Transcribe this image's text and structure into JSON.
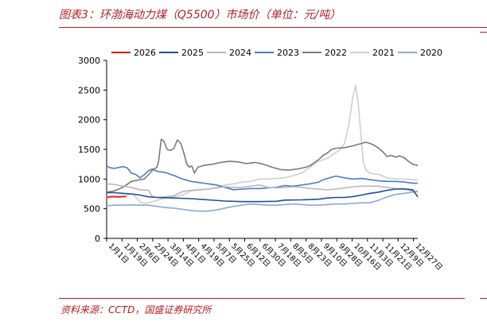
{
  "figure": {
    "title": "图表3：环渤海动力煤（Q5500）市场价（单位：元/吨）",
    "source": "资料来源：CCTD，国盛证券研究所"
  },
  "chart_data": {
    "type": "line",
    "x": [
      "1月1日",
      "1月19日",
      "2月6日",
      "2月24日",
      "3月14日",
      "4月1日",
      "4月19日",
      "5月7日",
      "5月25日",
      "6月12日",
      "6月30日",
      "7月18日",
      "8月5日",
      "8月23日",
      "9月10日",
      "9月28日",
      "10月16日",
      "11月3日",
      "11月21日",
      "12月9日",
      "12月27日"
    ],
    "ylim": [
      0,
      3000
    ],
    "yticks": [
      0,
      500,
      1000,
      1500,
      2000,
      2500,
      3000
    ],
    "legend_position": "top",
    "series": [
      {
        "name": "2026",
        "color": "#e11a1a",
        "points": [
          [
            1,
            690
          ],
          [
            5,
            700
          ],
          [
            10,
            700
          ],
          [
            17,
            698
          ],
          [
            20,
            703
          ],
          [
            24,
            702
          ]
        ]
      },
      {
        "name": "2025",
        "color": "#1f4e9c",
        "points": [
          [
            1,
            770
          ],
          [
            10,
            770
          ],
          [
            20,
            760
          ],
          [
            30,
            750
          ],
          [
            40,
            730
          ],
          [
            50,
            700
          ],
          [
            60,
            690
          ],
          [
            80,
            680
          ],
          [
            100,
            670
          ],
          [
            120,
            650
          ],
          [
            140,
            630
          ],
          [
            160,
            620
          ],
          [
            180,
            620
          ],
          [
            200,
            625
          ],
          [
            210,
            645
          ],
          [
            230,
            650
          ],
          [
            250,
            660
          ],
          [
            260,
            680
          ],
          [
            270,
            690
          ],
          [
            280,
            690
          ],
          [
            290,
            705
          ],
          [
            300,
            730
          ],
          [
            310,
            760
          ],
          [
            320,
            780
          ],
          [
            330,
            810
          ],
          [
            340,
            830
          ],
          [
            350,
            835
          ],
          [
            360,
            820
          ],
          [
            366,
            700
          ]
        ]
      },
      {
        "name": "2024",
        "color": "#b8b8b8",
        "points": [
          [
            1,
            920
          ],
          [
            10,
            910
          ],
          [
            20,
            880
          ],
          [
            30,
            860
          ],
          [
            40,
            820
          ],
          [
            50,
            810
          ],
          [
            55,
            700
          ],
          [
            60,
            690
          ],
          [
            70,
            700
          ],
          [
            80,
            720
          ],
          [
            90,
            790
          ],
          [
            95,
            800
          ],
          [
            100,
            810
          ],
          [
            110,
            820
          ],
          [
            120,
            830
          ],
          [
            130,
            850
          ],
          [
            140,
            870
          ],
          [
            150,
            860
          ],
          [
            160,
            860
          ],
          [
            170,
            880
          ],
          [
            180,
            900
          ],
          [
            190,
            860
          ],
          [
            200,
            850
          ],
          [
            210,
            860
          ],
          [
            220,
            870
          ],
          [
            230,
            860
          ],
          [
            240,
            840
          ],
          [
            250,
            830
          ],
          [
            260,
            820
          ],
          [
            270,
            830
          ],
          [
            280,
            850
          ],
          [
            290,
            870
          ],
          [
            300,
            880
          ],
          [
            310,
            880
          ],
          [
            320,
            880
          ],
          [
            330,
            860
          ],
          [
            340,
            840
          ],
          [
            350,
            830
          ],
          [
            360,
            800
          ],
          [
            366,
            800
          ]
        ]
      },
      {
        "name": "2023",
        "color": "#4a7cc8",
        "points": [
          [
            1,
            1220
          ],
          [
            5,
            1190
          ],
          [
            10,
            1180
          ],
          [
            20,
            1210
          ],
          [
            25,
            1190
          ],
          [
            30,
            1100
          ],
          [
            35,
            1080
          ],
          [
            40,
            1020
          ],
          [
            45,
            1070
          ],
          [
            50,
            1140
          ],
          [
            55,
            1170
          ],
          [
            60,
            1130
          ],
          [
            70,
            1110
          ],
          [
            80,
            1060
          ],
          [
            90,
            1000
          ],
          [
            100,
            960
          ],
          [
            110,
            940
          ],
          [
            120,
            920
          ],
          [
            130,
            900
          ],
          [
            140,
            860
          ],
          [
            150,
            820
          ],
          [
            160,
            830
          ],
          [
            170,
            840
          ],
          [
            180,
            840
          ],
          [
            190,
            850
          ],
          [
            200,
            860
          ],
          [
            210,
            890
          ],
          [
            220,
            880
          ],
          [
            230,
            900
          ],
          [
            240,
            920
          ],
          [
            250,
            950
          ],
          [
            255,
            990
          ],
          [
            260,
            1010
          ],
          [
            270,
            1050
          ],
          [
            280,
            1020
          ],
          [
            290,
            1000
          ],
          [
            300,
            1010
          ],
          [
            310,
            990
          ],
          [
            320,
            970
          ],
          [
            330,
            960
          ],
          [
            340,
            960
          ],
          [
            350,
            950
          ],
          [
            360,
            930
          ],
          [
            366,
            930
          ]
        ]
      },
      {
        "name": "2022",
        "color": "#7a7a7a",
        "points": [
          [
            1,
            780
          ],
          [
            10,
            800
          ],
          [
            20,
            860
          ],
          [
            30,
            960
          ],
          [
            40,
            990
          ],
          [
            45,
            1000
          ],
          [
            50,
            1070
          ],
          [
            55,
            1150
          ],
          [
            60,
            1200
          ],
          [
            62,
            1300
          ],
          [
            65,
            1670
          ],
          [
            68,
            1640
          ],
          [
            72,
            1500
          ],
          [
            76,
            1480
          ],
          [
            80,
            1520
          ],
          [
            84,
            1660
          ],
          [
            88,
            1600
          ],
          [
            92,
            1420
          ],
          [
            95,
            1250
          ],
          [
            98,
            1200
          ],
          [
            101,
            1220
          ],
          [
            104,
            1100
          ],
          [
            108,
            1200
          ],
          [
            115,
            1230
          ],
          [
            125,
            1250
          ],
          [
            135,
            1280
          ],
          [
            145,
            1300
          ],
          [
            155,
            1290
          ],
          [
            165,
            1260
          ],
          [
            175,
            1280
          ],
          [
            185,
            1250
          ],
          [
            195,
            1200
          ],
          [
            205,
            1160
          ],
          [
            215,
            1150
          ],
          [
            225,
            1170
          ],
          [
            235,
            1200
          ],
          [
            240,
            1230
          ],
          [
            245,
            1280
          ],
          [
            250,
            1330
          ],
          [
            255,
            1400
          ],
          [
            260,
            1440
          ],
          [
            265,
            1500
          ],
          [
            270,
            1520
          ],
          [
            280,
            1530
          ],
          [
            290,
            1560
          ],
          [
            300,
            1600
          ],
          [
            305,
            1620
          ],
          [
            310,
            1600
          ],
          [
            315,
            1570
          ],
          [
            320,
            1520
          ],
          [
            325,
            1460
          ],
          [
            330,
            1380
          ],
          [
            335,
            1400
          ],
          [
            340,
            1370
          ],
          [
            345,
            1390
          ],
          [
            350,
            1360
          ],
          [
            355,
            1300
          ],
          [
            360,
            1250
          ],
          [
            366,
            1230
          ]
        ]
      },
      {
        "name": "2021",
        "color": "#cfcfcf",
        "points": [
          [
            1,
            710
          ],
          [
            10,
            720
          ],
          [
            20,
            720
          ],
          [
            25,
            730
          ],
          [
            30,
            750
          ],
          [
            35,
            700
          ],
          [
            40,
            620
          ],
          [
            45,
            590
          ],
          [
            50,
            600
          ],
          [
            60,
            640
          ],
          [
            70,
            680
          ],
          [
            80,
            700
          ],
          [
            90,
            730
          ],
          [
            100,
            800
          ],
          [
            110,
            820
          ],
          [
            120,
            830
          ],
          [
            130,
            860
          ],
          [
            140,
            900
          ],
          [
            150,
            920
          ],
          [
            160,
            950
          ],
          [
            170,
            960
          ],
          [
            180,
            1000
          ],
          [
            190,
            1000
          ],
          [
            200,
            1010
          ],
          [
            210,
            1020
          ],
          [
            220,
            1060
          ],
          [
            230,
            1100
          ],
          [
            240,
            1200
          ],
          [
            250,
            1300
          ],
          [
            260,
            1350
          ],
          [
            270,
            1450
          ],
          [
            275,
            1500
          ],
          [
            280,
            1600
          ],
          [
            285,
            1900
          ],
          [
            290,
            2400
          ],
          [
            293,
            2580
          ],
          [
            296,
            2300
          ],
          [
            299,
            1800
          ],
          [
            302,
            1300
          ],
          [
            305,
            1150
          ],
          [
            310,
            1100
          ],
          [
            320,
            1080
          ],
          [
            330,
            1020
          ],
          [
            340,
            1000
          ],
          [
            350,
            1000
          ],
          [
            360,
            990
          ],
          [
            366,
            990
          ]
        ]
      },
      {
        "name": "2020",
        "color": "#8ea8d0",
        "points": [
          [
            1,
            550
          ],
          [
            10,
            560
          ],
          [
            20,
            560
          ],
          [
            30,
            565
          ],
          [
            40,
            560
          ],
          [
            50,
            560
          ],
          [
            60,
            540
          ],
          [
            70,
            520
          ],
          [
            80,
            510
          ],
          [
            90,
            490
          ],
          [
            100,
            470
          ],
          [
            110,
            460
          ],
          [
            120,
            460
          ],
          [
            130,
            480
          ],
          [
            140,
            510
          ],
          [
            150,
            540
          ],
          [
            160,
            560
          ],
          [
            170,
            580
          ],
          [
            180,
            570
          ],
          [
            190,
            560
          ],
          [
            200,
            560
          ],
          [
            210,
            570
          ],
          [
            220,
            580
          ],
          [
            230,
            570
          ],
          [
            240,
            560
          ],
          [
            250,
            560
          ],
          [
            260,
            570
          ],
          [
            270,
            580
          ],
          [
            280,
            580
          ],
          [
            290,
            590
          ],
          [
            300,
            600
          ],
          [
            310,
            600
          ],
          [
            320,
            640
          ],
          [
            330,
            700
          ],
          [
            340,
            740
          ],
          [
            350,
            760
          ],
          [
            360,
            780
          ],
          [
            366,
            790
          ]
        ]
      }
    ]
  }
}
